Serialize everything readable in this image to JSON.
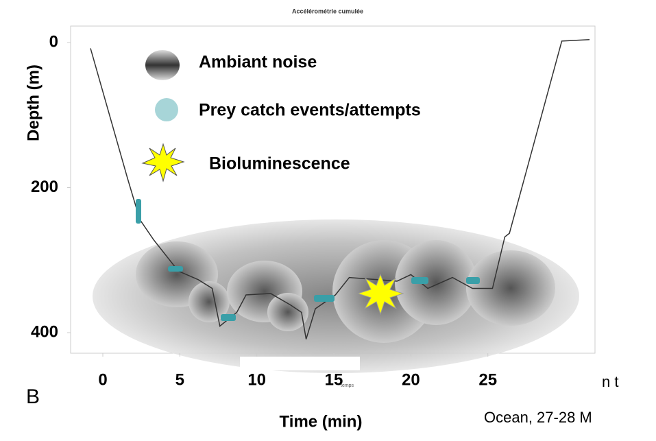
{
  "chart_data": {
    "type": "line",
    "title": "Accélérométrie cumulée",
    "x_label": "Time (min)",
    "y_label": "Depth (m)",
    "x_note": "temps",
    "legend_items": [
      "Ambiant noise",
      "Prey catch events/attempts",
      "Bioluminescence"
    ],
    "panel_label": "B",
    "annotations": [
      "n t",
      "Ocean, 27-28 M"
    ],
    "xlim": [
      -1.5,
      32
    ],
    "xticks": [
      0,
      5,
      10,
      15,
      20,
      25
    ],
    "ylim": [
      -5,
      410
    ],
    "yticks": [
      0,
      200,
      400
    ],
    "y_reversed": true,
    "series": [
      {
        "color": "#333333",
        "x": [
          -0.8,
          1.6,
          2.4,
          3.3,
          4.9,
          6.2,
          7.1,
          7.6,
          8.7,
          9.3,
          10.9,
          12.2,
          12.9,
          13.2,
          13.8,
          15.1,
          16.0,
          19.1,
          20.0,
          21.1,
          22.7,
          24.0,
          25.3,
          26.1,
          26.4,
          29.8,
          31.6
        ],
        "values": [
          8,
          187,
          244,
          272,
          315,
          327,
          339,
          391,
          372,
          348,
          346,
          362,
          372,
          409,
          367,
          348,
          324,
          329,
          320,
          339,
          324,
          339,
          339,
          268,
          263,
          -2,
          -4
        ]
      }
    ]
  }
}
